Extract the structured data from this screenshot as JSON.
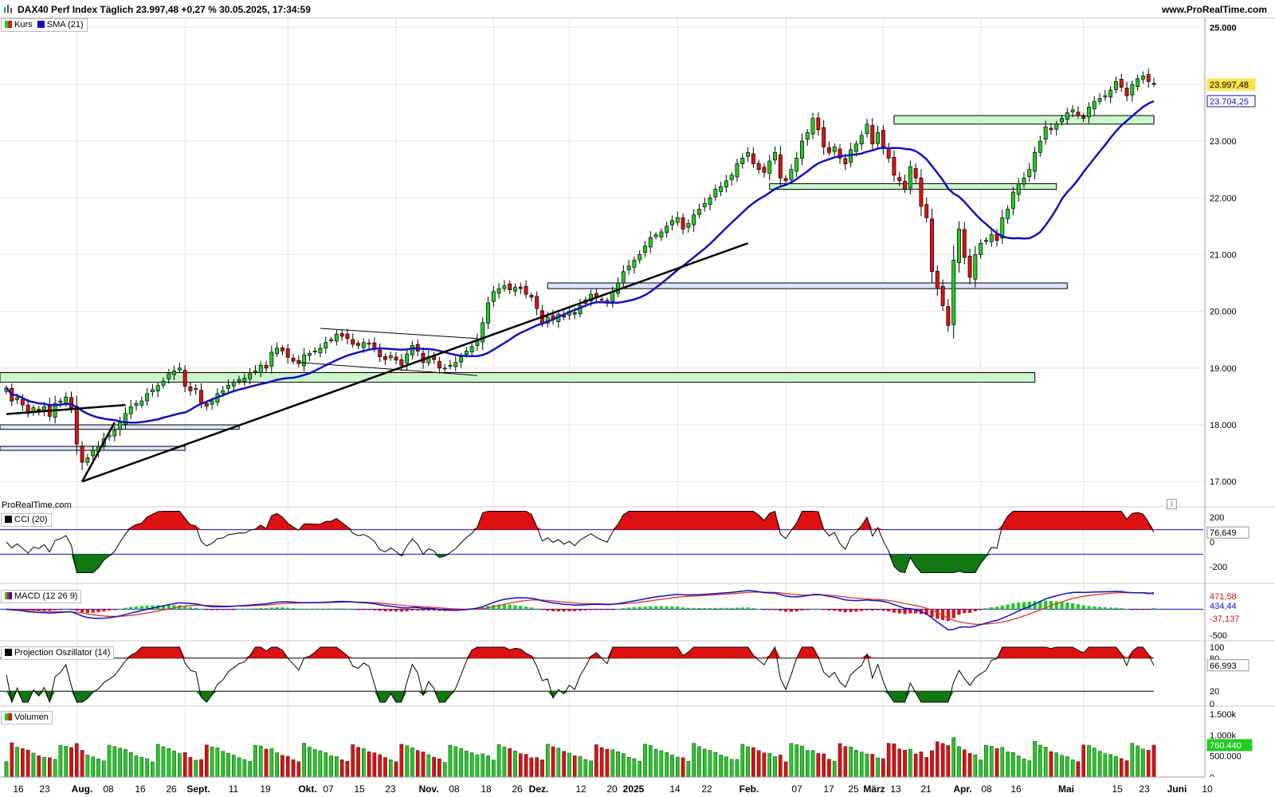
{
  "header": {
    "title": "DAX40 Perf Index Täglich 23.997,48 +0,27 % 30.05.2025, 17:34:59",
    "site": "www.ProRealTime.com"
  },
  "colors": {
    "up": "#22cc22",
    "down": "#dd1111",
    "sma": "#1111bb",
    "zone_green": "#ccf5cc",
    "zone_blue": "#dde4ff",
    "last_price_bg": "#ffe14d",
    "grid": "#e3e3e3",
    "trendline": "#000000"
  },
  "main_panel": {
    "legend": [
      {
        "label": "Kurs",
        "icon": "up-down-candle-icon"
      },
      {
        "label": "SMA (21)",
        "icon": "blue-square-icon"
      }
    ],
    "branding": "ProRealTime.com",
    "price_axis_ticks": [
      "25.000",
      "24.000",
      "23.000",
      "22.000",
      "21.000",
      "20.000",
      "19.000",
      "18.000",
      "17.000"
    ],
    "last_price_label": "23.997,48",
    "sma_label": "23.704,25"
  },
  "indicators": {
    "cci": {
      "label": "CCI (20)",
      "ticks": [
        "200",
        "0",
        "-200"
      ],
      "value": "76,649"
    },
    "macd": {
      "label": "MACD (12 26 9)",
      "ticks": [
        "-500"
      ],
      "values": [
        "471,58",
        "434,44",
        "-37,137"
      ]
    },
    "projection": {
      "label": "Projection Oszillator (14)",
      "ticks": [
        "100",
        "80",
        "20",
        "0"
      ],
      "value": "66,993"
    },
    "volume": {
      "label": "Volumen",
      "ticks": [
        "1.500k",
        "1.000k",
        "500.000",
        "0"
      ],
      "value": "760.440"
    }
  },
  "x_axis_labels": [
    {
      "label": "16",
      "bold": false
    },
    {
      "label": "23",
      "bold": false
    },
    {
      "label": "Aug.",
      "bold": true
    },
    {
      "label": "08",
      "bold": false
    },
    {
      "label": "16",
      "bold": false
    },
    {
      "label": "26",
      "bold": false
    },
    {
      "label": "Sept.",
      "bold": true
    },
    {
      "label": "11",
      "bold": false
    },
    {
      "label": "19",
      "bold": false
    },
    {
      "label": "Okt.",
      "bold": true
    },
    {
      "label": "07",
      "bold": false
    },
    {
      "label": "15",
      "bold": false
    },
    {
      "label": "23",
      "bold": false
    },
    {
      "label": "Nov.",
      "bold": true
    },
    {
      "label": "08",
      "bold": false
    },
    {
      "label": "18",
      "bold": false
    },
    {
      "label": "26",
      "bold": false
    },
    {
      "label": "Dez.",
      "bold": true
    },
    {
      "label": "12",
      "bold": false
    },
    {
      "label": "20",
      "bold": false
    },
    {
      "label": "2025",
      "bold": true
    },
    {
      "label": "14",
      "bold": false
    },
    {
      "label": "22",
      "bold": false
    },
    {
      "label": "Feb.",
      "bold": true
    },
    {
      "label": "07",
      "bold": false
    },
    {
      "label": "17",
      "bold": false
    },
    {
      "label": "25",
      "bold": false
    },
    {
      "label": "März",
      "bold": true
    },
    {
      "label": "13",
      "bold": false
    },
    {
      "label": "21",
      "bold": false
    },
    {
      "label": "Apr.",
      "bold": true
    },
    {
      "label": "08",
      "bold": false
    },
    {
      "label": "16",
      "bold": false
    },
    {
      "label": "Mai",
      "bold": true
    },
    {
      "label": "15",
      "bold": false
    },
    {
      "label": "23",
      "bold": false
    },
    {
      "label": "Juni",
      "bold": true
    },
    {
      "label": "10",
      "bold": false
    }
  ],
  "chart_data": {
    "type": "candlestick",
    "title": "DAX40 Perf Index Täglich",
    "x_range": [
      "2024-07-15",
      "2025-06-12"
    ],
    "ylim": [
      16750,
      25150
    ],
    "closes": [
      18650,
      18420,
      18480,
      18350,
      18200,
      18300,
      18250,
      18320,
      18150,
      18380,
      18420,
      18490,
      18300,
      17660,
      17340,
      17420,
      17550,
      17620,
      17750,
      17820,
      17900,
      18050,
      18200,
      18320,
      18380,
      18420,
      18550,
      18620,
      18690,
      18770,
      18900,
      18950,
      19000,
      18680,
      18600,
      18640,
      18380,
      18330,
      18420,
      18550,
      18600,
      18700,
      18750,
      18800,
      18820,
      18900,
      18950,
      19050,
      19000,
      19280,
      19350,
      19300,
      19190,
      19120,
      19080,
      19230,
      19260,
      19300,
      19350,
      19450,
      19500,
      19600,
      19560,
      19520,
      19420,
      19400,
      19450,
      19420,
      19350,
      19200,
      19150,
      19220,
      19140,
      19050,
      19250,
      19400,
      19300,
      19100,
      19200,
      19150,
      19000,
      19000,
      19050,
      19100,
      19200,
      19300,
      19380,
      19500,
      19800,
      20150,
      20350,
      20400,
      20450,
      20380,
      20420,
      20400,
      20300,
      20250,
      20050,
      19800,
      19900,
      19850,
      19950,
      19900,
      20000,
      19950,
      20100,
      20200,
      20300,
      20250,
      20200,
      20150,
      20350,
      20500,
      20700,
      20800,
      20900,
      21000,
      21150,
      21300,
      21350,
      21400,
      21500,
      21600,
      21650,
      21450,
      21550,
      21700,
      21800,
      21900,
      22000,
      22150,
      22200,
      22300,
      22400,
      22600,
      22700,
      22800,
      22600,
      22500,
      22450,
      22650,
      22800,
      22350,
      22300,
      22500,
      22700,
      23000,
      23150,
      23400,
      23200,
      22900,
      22800,
      22900,
      22700,
      22600,
      22850,
      22950,
      23100,
      23300,
      22950,
      23150,
      22900,
      22700,
      22400,
      22300,
      22150,
      22550,
      22350,
      21850,
      21650,
      20700,
      20400,
      20100,
      19750,
      20900,
      21450,
      20950,
      20600,
      21000,
      21200,
      21250,
      21350,
      21250,
      21650,
      21800,
      22100,
      22250,
      22350,
      22500,
      22800,
      23000,
      23250,
      23200,
      23300,
      23400,
      23500,
      23550,
      23450,
      23400,
      23600,
      23700,
      23750,
      23800,
      23900,
      24050,
      23950,
      23800,
      24000,
      24100,
      24150,
      24050,
      24000
    ],
    "sma_21_end": 23704.25,
    "last_close": 23997.48,
    "levels": {
      "zones": [
        {
          "type": "resistance",
          "from": 23300,
          "to": 23450
        },
        {
          "type": "support",
          "from": 22150,
          "to": 22250
        },
        {
          "type": "support",
          "from": 20400,
          "to": 20500
        },
        {
          "type": "support",
          "from": 18750,
          "to": 18920
        },
        {
          "type": "support",
          "from": 17920,
          "to": 18000
        },
        {
          "type": "support",
          "from": 17550,
          "to": 17620
        }
      ]
    },
    "cci_last": 76.649,
    "macd_last": {
      "macd": 471.58,
      "signal": 434.44,
      "histogram": -37.137
    },
    "projection_last": 66.993,
    "volume_last": 760440
  }
}
